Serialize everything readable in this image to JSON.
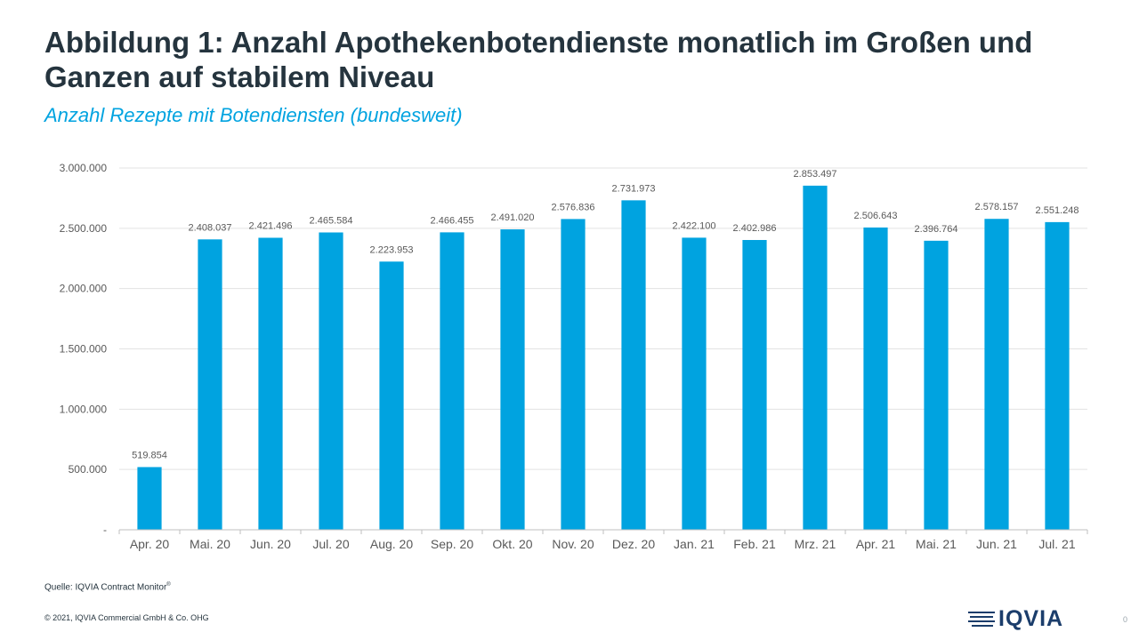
{
  "header": {
    "title": "Abbildung 1: Anzahl Apothekenbotendienste monatlich im Großen und Ganzen auf stabilem Niveau",
    "subtitle": "Anzahl Rezepte mit Botendiensten (bundesweit)"
  },
  "chart_data": {
    "type": "bar",
    "title": "",
    "xlabel": "",
    "ylabel": "",
    "categories": [
      "Apr. 20",
      "Mai. 20",
      "Jun. 20",
      "Jul. 20",
      "Aug. 20",
      "Sep. 20",
      "Okt. 20",
      "Nov. 20",
      "Dez. 20",
      "Jan. 21",
      "Feb. 21",
      "Mrz. 21",
      "Apr. 21",
      "Mai. 21",
      "Jun. 21",
      "Jul. 21"
    ],
    "values": [
      519854,
      2408037,
      2421496,
      2465584,
      2223953,
      2466455,
      2491020,
      2576836,
      2731973,
      2422100,
      2402986,
      2853497,
      2506643,
      2396764,
      2578157,
      2551248
    ],
    "value_labels": [
      "519.854",
      "2.408.037",
      "2.421.496",
      "2.465.584",
      "2.223.953",
      "2.466.455",
      "2.491.020",
      "2.576.836",
      "2.731.973",
      "2.422.100",
      "2.402.986",
      "2.853.497",
      "2.506.643",
      "2.396.764",
      "2.578.157",
      "2.551.248"
    ],
    "ylim": [
      0,
      3000000
    ],
    "yticks": [
      0,
      500000,
      1000000,
      1500000,
      2000000,
      2500000,
      3000000
    ],
    "ytick_labels": [
      "-",
      "500.000",
      "1.000.000",
      "1.500.000",
      "2.000.000",
      "2.500.000",
      "3.000.000"
    ],
    "grid": true,
    "legend": "none",
    "bar_color": "#00a3e0",
    "grid_color": "#e3e3e3"
  },
  "footer": {
    "source_label": "Quelle: IQVIA  Contract Monitor",
    "source_mark": "®",
    "copyright": "© 2021, IQVIA Commercial GmbH & Co. OHG",
    "page_number": "0"
  },
  "logo": {
    "text": "IQVIA",
    "color": "#1b3d6b"
  }
}
